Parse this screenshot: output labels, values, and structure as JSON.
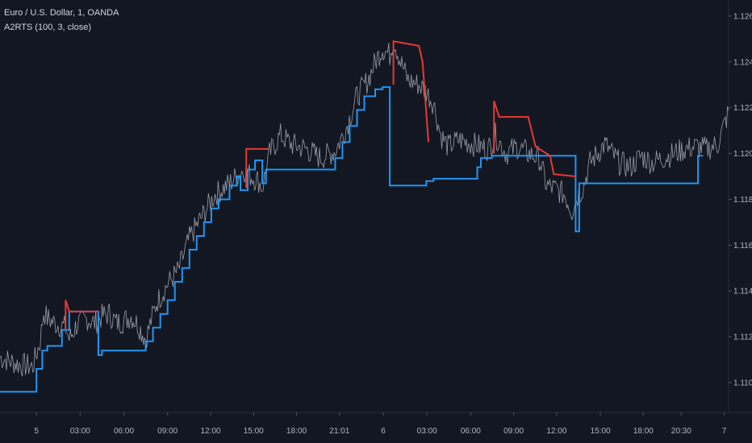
{
  "header": {
    "symbol": "Euro / U.S. Dollar, 1, OANDA",
    "indicator": "A2RTS (100, 3, close)"
  },
  "colors": {
    "background": "#131722",
    "price": "#b2b5be",
    "support": "#2196f3",
    "resistance": "#e53935",
    "axis_text": "#b2b5be",
    "axis_line": "#2a2e39"
  },
  "chart_data": {
    "type": "line",
    "title": "Euro / U.S. Dollar, 1, OANDA",
    "xlabel": "",
    "ylabel": "",
    "ylim": [
      1.1087,
      1.1267
    ],
    "xlim": [
      0,
      100
    ],
    "grid": false,
    "x_ticks": [
      {
        "label": "5",
        "x": 5.0
      },
      {
        "label": "03:00",
        "x": 11.0
      },
      {
        "label": "06:00",
        "x": 17.0
      },
      {
        "label": "09:00",
        "x": 23.0
      },
      {
        "label": "12:00",
        "x": 28.9
      },
      {
        "label": "15:00",
        "x": 34.8
      },
      {
        "label": "18:00",
        "x": 40.7
      },
      {
        "label": "21:01",
        "x": 46.6
      },
      {
        "label": "6",
        "x": 52.6
      },
      {
        "label": "03:00",
        "x": 58.6
      },
      {
        "label": "06:00",
        "x": 64.6
      },
      {
        "label": "09:00",
        "x": 70.5
      },
      {
        "label": "12:00",
        "x": 76.4
      },
      {
        "label": "15:00",
        "x": 82.4
      },
      {
        "label": "18:00",
        "x": 88.3
      },
      {
        "label": "20:30",
        "x": 93.5
      },
      {
        "label": "7",
        "x": 99.4
      }
    ],
    "y_ticks": [
      "1.1260",
      "1.1240",
      "1.1220",
      "1.1200",
      "1.1180",
      "1.1160",
      "1.1140",
      "1.1120",
      "1.1100"
    ],
    "series": [
      {
        "role": "price",
        "x": [
          0,
          2.5,
          4.5,
          5.5,
          6.0,
          6.5,
          7.5,
          9.0,
          9.5,
          10.5,
          12.0,
          13.0,
          14.0,
          15.0,
          16.0,
          17.0,
          18.0,
          19.0,
          20.0,
          21.5,
          23.0,
          24.5,
          26.0,
          28.0,
          29.5,
          31.5,
          33.5,
          34.5,
          35.5,
          36.0,
          37.0,
          38.5,
          40.0,
          42.0,
          44.0,
          46.0,
          47.5,
          49.0,
          50.5,
          51.5,
          52.5,
          53.5,
          54.0,
          55.0,
          56.0,
          57.5,
          58.5,
          59.5,
          60.0,
          60.5,
          61.5,
          63.0,
          65.0,
          67.0,
          68.0,
          69.5,
          71.0,
          72.5,
          74.0,
          75.0,
          76.5,
          77.5,
          78.5,
          79.0,
          80.0,
          81.0,
          82.0,
          83.0,
          84.0,
          85.0,
          86.5,
          88.0,
          89.5,
          91.0,
          92.5,
          94.0,
          95.5,
          97.0,
          98.5,
          100.0
        ],
        "y": [
          1.1111,
          1.1108,
          1.1107,
          1.1118,
          1.1131,
          1.1128,
          1.1126,
          1.1124,
          1.1119,
          1.1125,
          1.1128,
          1.1126,
          1.1129,
          1.113,
          1.1126,
          1.1127,
          1.1129,
          1.1125,
          1.1119,
          1.1135,
          1.1143,
          1.1149,
          1.1163,
          1.1174,
          1.1182,
          1.1187,
          1.1193,
          1.119,
          1.1188,
          1.1185,
          1.12,
          1.1208,
          1.1204,
          1.1202,
          1.1198,
          1.1201,
          1.1211,
          1.1225,
          1.1232,
          1.124,
          1.1246,
          1.1243,
          1.125,
          1.124,
          1.1232,
          1.123,
          1.1227,
          1.1222,
          1.1215,
          1.1208,
          1.1203,
          1.1206,
          1.1204,
          1.1202,
          1.1208,
          1.12,
          1.1203,
          1.12,
          1.1198,
          1.1186,
          1.1184,
          1.1182,
          1.1175,
          1.118,
          1.1185,
          1.1196,
          1.12,
          1.1204,
          1.12,
          1.1196,
          1.1194,
          1.1199,
          1.1196,
          1.1198,
          1.12,
          1.1202,
          1.1203,
          1.1202,
          1.1204,
          1.1218
        ]
      },
      {
        "role": "support",
        "x": [
          0,
          5.0,
          5.0,
          5.8,
          5.8,
          6.5,
          6.5,
          8.5,
          8.5,
          9.5,
          9.5,
          13.5,
          13.5,
          14.0,
          14.0,
          20.0,
          20.0,
          21.0,
          21.0,
          22.0,
          22.0,
          23.0,
          23.0,
          24.0,
          24.0,
          25.0,
          25.0,
          26.0,
          26.0,
          27.0,
          27.0,
          28.0,
          28.0,
          29.0,
          29.0,
          30.0,
          30.0,
          31.5,
          31.5,
          32.5,
          32.5,
          33.0,
          33.0,
          34.0,
          34.0,
          35.0,
          35.0,
          36.0,
          36.0,
          36.5,
          36.5,
          46.0,
          46.0,
          47.0,
          47.0,
          48.0,
          48.0,
          49.0,
          49.0,
          50.0,
          50.0,
          51.5,
          51.5,
          52.5,
          52.5,
          53.5,
          53.5,
          58.5,
          58.5,
          59.5,
          59.5,
          65.5,
          65.5,
          66.0,
          66.0,
          67.5,
          67.5,
          79.0,
          79.0,
          79.5,
          79.5,
          95.8,
          95.8,
          96.5
        ],
        "y": [
          1.1096,
          1.1096,
          1.1106,
          1.1106,
          1.1114,
          1.1114,
          1.1116,
          1.1116,
          1.1123,
          1.1123,
          1.1131,
          1.1131,
          1.1112,
          1.1112,
          1.1114,
          1.1114,
          1.1118,
          1.1118,
          1.1124,
          1.1124,
          1.113,
          1.113,
          1.1136,
          1.1136,
          1.1144,
          1.1144,
          1.115,
          1.115,
          1.1158,
          1.1158,
          1.1164,
          1.1164,
          1.117,
          1.117,
          1.1176,
          1.1176,
          1.118,
          1.118,
          1.1186,
          1.1186,
          1.119,
          1.119,
          1.1184,
          1.1184,
          1.1193,
          1.1193,
          1.1197,
          1.1197,
          1.1187,
          1.1187,
          1.1193,
          1.1193,
          1.1198,
          1.1198,
          1.1205,
          1.1205,
          1.1212,
          1.1212,
          1.1219,
          1.1219,
          1.1225,
          1.1225,
          1.1228,
          1.1228,
          1.1229,
          1.1229,
          1.1186,
          1.1186,
          1.1188,
          1.1188,
          1.1189,
          1.1189,
          1.1194,
          1.1194,
          1.1198,
          1.1198,
          1.1199,
          1.1199,
          1.1166,
          1.1166,
          1.1187,
          1.1187,
          1.1199,
          1.1199
        ]
      },
      {
        "role": "resistance",
        "segments": [
          {
            "x": [
              9.0,
              9.0,
              9.5,
              13.5
            ],
            "y": [
              1.1123,
              1.1136,
              1.1131,
              1.1131
            ]
          },
          {
            "x": [
              33.8,
              33.8,
              35.5,
              36.8
            ],
            "y": [
              1.1185,
              1.1202,
              1.1202,
              1.1202
            ]
          },
          {
            "x": [
              54.0,
              54.0,
              57.5,
              58.0,
              58.8
            ],
            "y": [
              1.123,
              1.1249,
              1.1247,
              1.124,
              1.1205
            ]
          },
          {
            "x": [
              67.8,
              67.8,
              68.5,
              72.5,
              73.5,
              75.5,
              76.0,
              79.0
            ],
            "y": [
              1.12,
              1.1223,
              1.1216,
              1.1216,
              1.1203,
              1.1199,
              1.1191,
              1.119
            ]
          }
        ]
      }
    ]
  }
}
